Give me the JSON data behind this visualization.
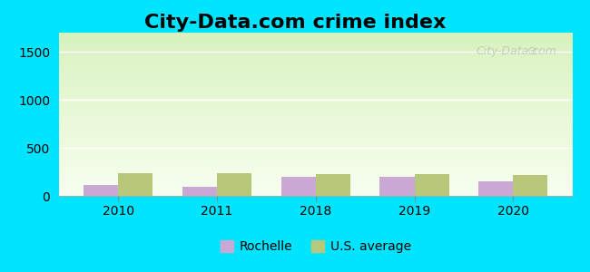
{
  "title": "City-Data.com crime index",
  "years": [
    2010,
    2011,
    2018,
    2019,
    2020
  ],
  "rochelle_values": [
    115,
    95,
    195,
    200,
    155
  ],
  "us_avg_values": [
    240,
    240,
    230,
    225,
    220
  ],
  "rochelle_color": "#c9a8d4",
  "us_avg_color": "#b8c87a",
  "background_top": "#e8f5d0",
  "background_bottom": "#f5fff0",
  "outer_bg": "#00e5ff",
  "ylim": [
    0,
    1700
  ],
  "yticks": [
    0,
    500,
    1000,
    1500
  ],
  "bar_width": 0.35,
  "title_fontsize": 16,
  "legend_labels": [
    "Rochelle",
    "U.S. average"
  ],
  "watermark": "City-Data.com"
}
